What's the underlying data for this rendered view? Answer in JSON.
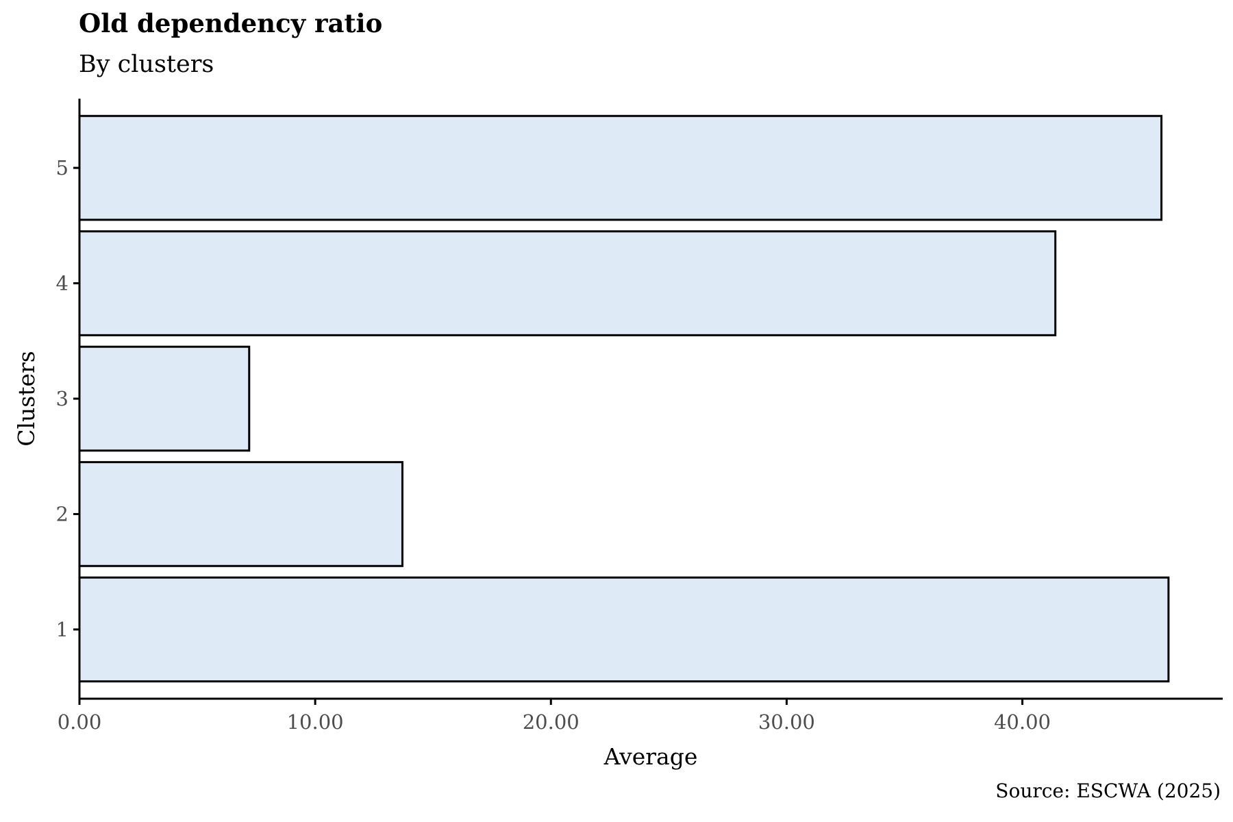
{
  "chart_data": {
    "type": "bar",
    "orientation": "horizontal",
    "title": "Old dependency ratio",
    "subtitle": "By clusters",
    "caption": "Source: ESCWA (2025)",
    "xlabel": "Average",
    "ylabel": "Clusters",
    "categories": [
      "1",
      "2",
      "3",
      "4",
      "5"
    ],
    "values": [
      46.2,
      13.7,
      7.2,
      41.4,
      45.9
    ],
    "xlim": [
      0,
      48.5
    ],
    "xticks": [
      0,
      10,
      20,
      30,
      40
    ],
    "xtick_labels": [
      "0.00",
      "10.00",
      "20.00",
      "30.00",
      "40.00"
    ],
    "bar_fill": "#deebf7",
    "bar_stroke": "#000000",
    "grid": false,
    "legend": "none"
  }
}
